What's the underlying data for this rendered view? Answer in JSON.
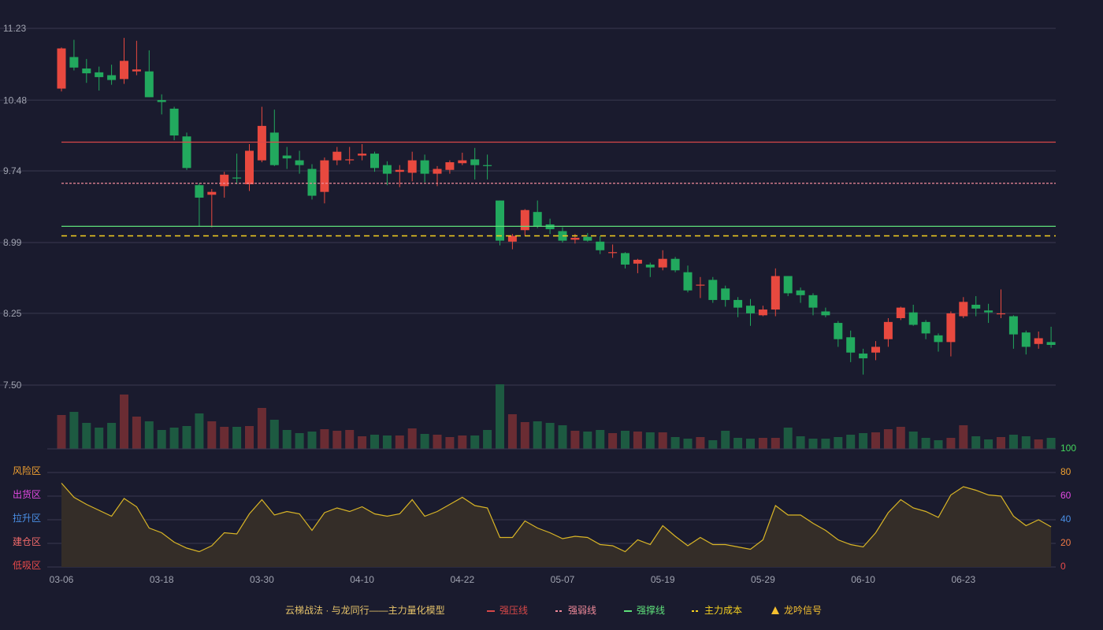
{
  "chart_data": [
    {
      "type": "candlestick",
      "categories": [
        "03-06",
        null,
        null,
        null,
        null,
        null,
        null,
        null,
        "03-18",
        null,
        null,
        null,
        null,
        null,
        null,
        null,
        "03-30",
        null,
        null,
        null,
        null,
        null,
        null,
        null,
        "04-10",
        null,
        null,
        null,
        null,
        null,
        null,
        null,
        "04-22",
        null,
        null,
        null,
        null,
        null,
        null,
        null,
        "05-07",
        null,
        null,
        null,
        null,
        null,
        null,
        null,
        "05-19",
        null,
        null,
        null,
        null,
        null,
        null,
        null,
        "05-29",
        null,
        null,
        null,
        null,
        null,
        null,
        null,
        "06-10",
        null,
        null,
        null,
        null,
        null,
        null,
        null,
        "06-23",
        null,
        null,
        null,
        null,
        null,
        null,
        null
      ],
      "open": [
        10.6,
        10.93,
        10.81,
        10.77,
        10.74,
        10.7,
        10.78,
        10.78,
        10.48,
        10.39,
        10.1,
        9.59,
        9.49,
        9.58,
        9.67,
        9.6,
        9.85,
        10.14,
        9.9,
        9.85,
        9.76,
        9.52,
        9.85,
        9.85,
        9.9,
        9.92,
        9.8,
        9.73,
        9.72,
        9.85,
        9.71,
        9.75,
        9.82,
        9.86,
        9.8,
        9.43,
        9.0,
        9.12,
        9.31,
        9.18,
        9.11,
        9.02,
        9.05,
        9.0,
        8.88,
        8.88,
        8.77,
        8.76,
        8.73,
        8.82,
        8.68,
        8.54,
        8.6,
        8.51,
        8.39,
        8.33,
        8.23,
        8.29,
        8.64,
        8.49,
        8.44,
        8.27,
        8.15,
        8.0,
        7.83,
        7.84,
        7.98,
        8.2,
        8.26,
        8.16,
        8.02,
        7.95,
        8.22,
        8.34,
        8.28,
        8.24,
        8.22,
        8.05,
        7.93,
        7.95
      ],
      "high": [
        11.03,
        11.11,
        10.91,
        10.83,
        10.85,
        11.13,
        11.1,
        11.0,
        10.54,
        10.41,
        10.14,
        9.61,
        9.55,
        9.73,
        9.92,
        10.02,
        10.41,
        10.38,
        9.99,
        9.95,
        9.81,
        9.88,
        9.99,
        9.99,
        10.02,
        9.94,
        9.84,
        9.8,
        9.94,
        9.91,
        9.79,
        9.85,
        9.93,
        9.98,
        9.91,
        9.43,
        9.08,
        9.34,
        9.43,
        9.24,
        9.15,
        9.08,
        9.09,
        9.06,
        8.97,
        8.89,
        8.82,
        8.78,
        8.91,
        8.84,
        8.75,
        8.63,
        8.63,
        8.54,
        8.42,
        8.4,
        8.33,
        8.72,
        8.64,
        8.52,
        8.46,
        8.31,
        8.17,
        8.07,
        7.88,
        7.96,
        8.2,
        8.32,
        8.34,
        8.18,
        8.04,
        8.27,
        8.42,
        8.43,
        8.35,
        8.5,
        8.23,
        8.07,
        8.06,
        8.11
      ],
      "low": [
        10.57,
        10.79,
        10.66,
        10.58,
        10.64,
        10.65,
        10.74,
        10.51,
        10.33,
        10.06,
        9.75,
        9.16,
        9.15,
        9.46,
        9.6,
        9.53,
        9.83,
        9.79,
        9.76,
        9.71,
        9.44,
        9.4,
        9.8,
        9.81,
        9.85,
        9.73,
        9.59,
        9.57,
        9.63,
        9.62,
        9.58,
        9.71,
        9.8,
        9.65,
        9.65,
        8.96,
        8.92,
        9.06,
        9.14,
        9.08,
        8.99,
        8.98,
        9.0,
        8.87,
        8.83,
        8.72,
        8.67,
        8.63,
        8.7,
        8.68,
        8.47,
        8.41,
        8.36,
        8.32,
        8.21,
        8.12,
        8.22,
        8.22,
        8.43,
        8.36,
        8.23,
        8.21,
        7.9,
        7.74,
        7.61,
        7.76,
        7.9,
        8.18,
        8.12,
        7.98,
        7.85,
        7.8,
        8.2,
        8.22,
        8.15,
        8.2,
        7.88,
        7.82,
        7.88,
        7.89
      ],
      "close": [
        11.02,
        10.82,
        10.76,
        10.72,
        10.69,
        10.89,
        10.8,
        10.51,
        10.46,
        10.11,
        9.77,
        9.46,
        9.52,
        9.7,
        9.66,
        9.95,
        10.21,
        9.8,
        9.87,
        9.8,
        9.48,
        9.85,
        9.94,
        9.86,
        9.92,
        9.77,
        9.71,
        9.75,
        9.85,
        9.71,
        9.76,
        9.83,
        9.85,
        9.8,
        9.79,
        9.01,
        9.06,
        9.33,
        9.16,
        9.13,
        9.01,
        9.04,
        9.01,
        8.91,
        8.89,
        8.76,
        8.81,
        8.73,
        8.82,
        8.7,
        8.49,
        8.55,
        8.39,
        8.39,
        8.31,
        8.25,
        8.29,
        8.64,
        8.46,
        8.44,
        8.31,
        8.23,
        7.98,
        7.84,
        7.78,
        7.9,
        8.16,
        8.31,
        8.13,
        8.04,
        7.95,
        8.25,
        8.37,
        8.3,
        8.26,
        8.25,
        8.03,
        7.9,
        7.99,
        7.92
      ],
      "volume": [
        43,
        47,
        33,
        27,
        33,
        69,
        41,
        35,
        24,
        27,
        29,
        45,
        35,
        28,
        28,
        29,
        52,
        37,
        24,
        20,
        22,
        25,
        23,
        24,
        16,
        18,
        17,
        17,
        26,
        19,
        18,
        15,
        17,
        17,
        24,
        82,
        44,
        34,
        35,
        33,
        30,
        23,
        22,
        24,
        20,
        23,
        22,
        21,
        21,
        15,
        13,
        15,
        11,
        23,
        14,
        13,
        14,
        14,
        27,
        16,
        13,
        13,
        15,
        18,
        20,
        21,
        25,
        28,
        22,
        14,
        11,
        14,
        30,
        16,
        12,
        15,
        18,
        16,
        12,
        14
      ],
      "up_color": "#e8493f",
      "down_color": "#22a95e",
      "up_volume_color": "#6a2c33",
      "down_volume_color": "#1d5a41",
      "ylim": [
        7.5,
        11.23
      ],
      "yticks": [
        {
          "value": 7.5,
          "label": "7.50"
        },
        8.25,
        8.99,
        9.74,
        10.48,
        11.23
      ],
      "grid": true,
      "lines": [
        {
          "name": "强压线",
          "color": "#d94848",
          "value": 10.04,
          "style": "solid"
        },
        {
          "name": "强弱线",
          "color": "#f08a9a",
          "value": 9.61,
          "style": "dashed"
        },
        {
          "name": "强撑线",
          "color": "#5ee07a",
          "value": 9.16,
          "style": "solid"
        },
        {
          "name": "主力成本",
          "color": "#f5d020",
          "value": 9.06,
          "style": "dashed"
        }
      ],
      "signal": {
        "name": "龙吟信号",
        "color": "#f5c030"
      }
    },
    {
      "type": "area",
      "values": [
        71,
        59,
        53,
        48,
        43,
        58,
        51,
        33,
        29,
        21,
        16,
        13,
        18,
        29,
        28,
        45,
        57,
        44,
        47,
        45,
        31,
        46,
        50,
        47,
        51,
        45,
        43,
        45,
        57,
        43,
        47,
        53,
        59,
        52,
        50,
        25,
        25,
        39,
        33,
        29,
        24,
        26,
        25,
        19,
        18,
        13,
        23,
        19,
        35,
        26,
        18,
        25,
        19,
        19,
        17,
        15,
        23,
        52,
        44,
        44,
        37,
        31,
        23,
        19,
        17,
        29,
        46,
        57,
        50,
        47,
        42,
        61,
        68,
        65,
        61,
        60,
        43,
        35,
        40,
        34
      ],
      "color": "#d9b526",
      "fill": "#342d28",
      "ylim": [
        0,
        100
      ],
      "yticks": [
        0,
        20,
        40,
        60,
        80,
        100
      ],
      "ytick_colors": [
        "#e84a4a",
        "#f07a45",
        "#4a8fe6",
        "#e34ae3",
        "#f0a030",
        "#44d65c"
      ],
      "zones": [
        {
          "label": "风险区",
          "value": 80,
          "color": "#f0a030"
        },
        {
          "label": "出货区",
          "value": 60,
          "color": "#e34ae3"
        },
        {
          "label": "拉升区",
          "value": 40,
          "color": "#4a8fe6"
        },
        {
          "label": "建仓区",
          "value": 20,
          "color": "#f06a6a"
        },
        {
          "label": "低吸区",
          "value": 0,
          "color": "#e84a4a"
        }
      ]
    }
  ],
  "legend_title": "云梯战法 · 与龙同行——主力量化模型"
}
